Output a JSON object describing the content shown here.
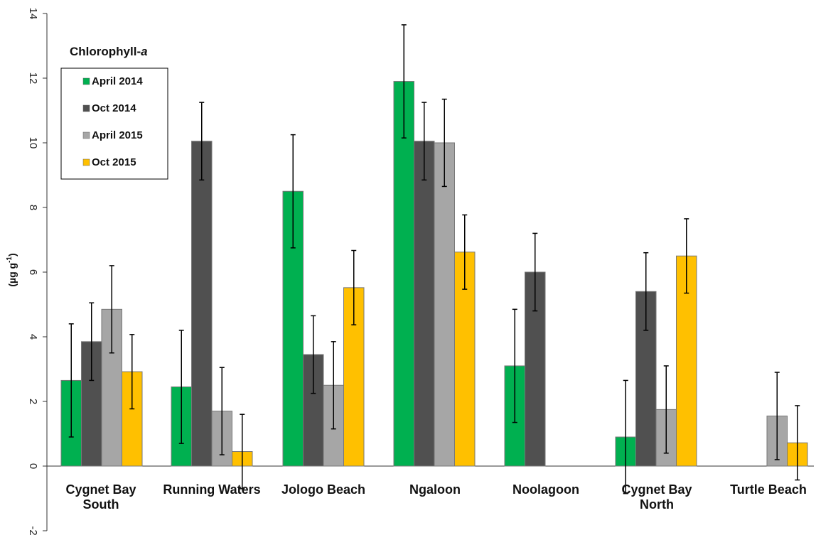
{
  "chart_data": {
    "type": "bar",
    "title": "Chlorophyll-a",
    "title_main": "Chlorophyll-",
    "title_italic": "a",
    "ylabel": "(µg g⁻¹)",
    "ylabel_main": "(µg g",
    "ylabel_sup": "-1",
    "ylabel_close": ")",
    "xlabel": "",
    "ylim": [
      -2,
      14
    ],
    "yticks": [
      -2,
      0,
      2,
      4,
      6,
      8,
      10,
      12,
      14
    ],
    "grid": false,
    "legend_position": "top-left",
    "categories": [
      [
        "Cygnet Bay",
        "South"
      ],
      [
        "Running Waters"
      ],
      [
        "Jologo Beach"
      ],
      [
        "Ngaloon"
      ],
      [
        "Noolagoon"
      ],
      [
        "Cygnet Bay",
        "North"
      ],
      [
        "Turtle Beach"
      ]
    ],
    "series": [
      {
        "name": "April 2014",
        "color": "#00b050",
        "values": [
          2.65,
          2.45,
          8.5,
          11.9,
          3.1,
          0.9,
          null
        ],
        "errors": [
          1.75,
          1.75,
          1.75,
          1.75,
          1.75,
          1.75,
          null
        ]
      },
      {
        "name": "Oct 2014",
        "color": "#505050",
        "values": [
          3.85,
          10.05,
          3.45,
          10.05,
          6.0,
          5.4,
          null
        ],
        "errors": [
          1.2,
          1.2,
          1.2,
          1.2,
          1.2,
          1.2,
          null
        ]
      },
      {
        "name": "April 2015",
        "color": "#a6a6a6",
        "values": [
          4.85,
          1.7,
          2.5,
          10.0,
          null,
          1.75,
          1.55
        ],
        "errors": [
          1.35,
          1.35,
          1.35,
          1.35,
          null,
          1.35,
          1.35
        ]
      },
      {
        "name": "Oct 2015",
        "color": "#ffc000",
        "values": [
          2.92,
          0.45,
          5.52,
          6.62,
          null,
          6.5,
          0.72
        ],
        "errors": [
          1.15,
          1.15,
          1.15,
          1.15,
          null,
          1.15,
          1.15
        ]
      }
    ]
  }
}
